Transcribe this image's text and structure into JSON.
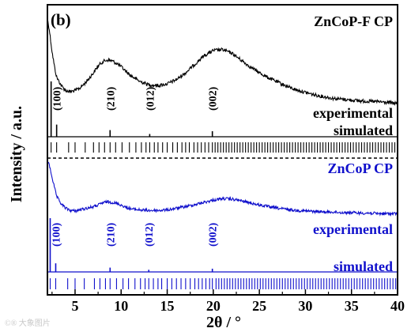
{
  "colors": {
    "panel_top": "#000000",
    "panel_bottom": "#1010cc",
    "axis": "#000000"
  },
  "watermark": "©® 大象图片",
  "chart_data": {
    "type": "line",
    "panel_label": "(b)",
    "xlabel": "2θ / °",
    "ylabel": "Intensity / a.u.",
    "xlim": [
      2,
      40
    ],
    "xticks": [
      5,
      10,
      15,
      20,
      25,
      30,
      35,
      40
    ],
    "xtick_labels": [
      "5",
      "10",
      "15",
      "20",
      "25",
      "30",
      "35",
      "40"
    ],
    "grid": false,
    "panels": [
      {
        "id": "top",
        "title": "ZnCoP-F CP",
        "color": "#000000",
        "series": [
          {
            "name": "experimental",
            "x": [
              2.0,
              2.2,
              2.5,
              2.8,
              3.0,
              3.5,
              4.0,
              4.5,
              5.0,
              5.5,
              6.0,
              6.5,
              7.0,
              7.5,
              8.0,
              8.5,
              9.0,
              9.5,
              10.0,
              10.5,
              11.0,
              12.0,
              13.0,
              14.0,
              15.0,
              16.0,
              17.0,
              18.0,
              19.0,
              20.0,
              21.0,
              22.0,
              23.0,
              24.0,
              25.0,
              26.0,
              27.0,
              28.0,
              29.0,
              30.0,
              31.0,
              32.0,
              33.0,
              34.0,
              35.0,
              36.0,
              37.0,
              38.0,
              39.0,
              40.0
            ],
            "y": [
              1.0,
              0.88,
              0.62,
              0.42,
              0.32,
              0.22,
              0.16,
              0.15,
              0.16,
              0.19,
              0.24,
              0.3,
              0.37,
              0.45,
              0.5,
              0.52,
              0.51,
              0.48,
              0.44,
              0.39,
              0.34,
              0.27,
              0.23,
              0.22,
              0.24,
              0.29,
              0.37,
              0.47,
              0.57,
              0.63,
              0.64,
              0.6,
              0.52,
              0.44,
              0.37,
              0.31,
              0.26,
              0.21,
              0.17,
              0.14,
              0.11,
              0.09,
              0.07,
              0.06,
              0.05,
              0.04,
              0.035,
              0.03,
              0.02,
              0.01
            ]
          },
          {
            "name": "simulated",
            "peaks": [
              {
                "x": 2.4,
                "h": 1.0,
                "label": ""
              },
              {
                "x": 3.0,
                "h": 0.22,
                "label": "(100)"
              },
              {
                "x": 8.8,
                "h": 0.12,
                "label": "(210)"
              },
              {
                "x": 13.1,
                "h": 0.05,
                "label": "(012)"
              },
              {
                "x": 19.9,
                "h": 0.1,
                "label": "(002)"
              }
            ]
          }
        ],
        "ticks": [
          2.4,
          3.0,
          4.3,
          5.0,
          6.1,
          7.0,
          7.6,
          8.2,
          8.8,
          9.4,
          10.1,
          10.9,
          11.6,
          12.2,
          12.7,
          13.1,
          13.6,
          14.0,
          14.5,
          15.0,
          15.6,
          16.1,
          16.6,
          17.0,
          17.4,
          17.9,
          18.3,
          18.7,
          19.1,
          19.5,
          19.9,
          20.2,
          20.5,
          20.8,
          21.1,
          21.4,
          21.7,
          22.0,
          22.3,
          22.6,
          22.9,
          23.2,
          23.5,
          23.8,
          24.1,
          24.4,
          24.7,
          25.0,
          25.3,
          25.6,
          25.9,
          26.2,
          26.5,
          26.8,
          27.1,
          27.4,
          27.7,
          28.0,
          28.3,
          28.6,
          28.9,
          29.2,
          29.5,
          29.8,
          30.1,
          30.4,
          30.7,
          31.0,
          31.3,
          31.6,
          31.9,
          32.2,
          32.5,
          32.8,
          33.1,
          33.4,
          33.7,
          34.0,
          34.3,
          34.6,
          34.9,
          35.2,
          35.5,
          35.8,
          36.1,
          36.4,
          36.7,
          37.0,
          37.3,
          37.6,
          37.9,
          38.2,
          38.5,
          38.8,
          39.1,
          39.4,
          39.7
        ]
      },
      {
        "id": "bottom",
        "title": "ZnCoP CP",
        "color": "#1010cc",
        "series": [
          {
            "name": "experimental",
            "x": [
              2.0,
              2.2,
              2.5,
              2.8,
              3.0,
              3.5,
              4.0,
              4.5,
              5.0,
              5.5,
              6.0,
              6.5,
              7.0,
              7.5,
              8.0,
              8.5,
              9.0,
              9.5,
              10.0,
              10.5,
              11.0,
              12.0,
              13.0,
              14.0,
              15.0,
              16.0,
              17.0,
              18.0,
              19.0,
              20.0,
              21.0,
              22.0,
              23.0,
              24.0,
              25.0,
              26.0,
              27.0,
              28.0,
              29.0,
              30.0,
              31.0,
              32.0,
              33.0,
              34.0,
              35.0,
              36.0,
              37.0,
              38.0,
              39.0,
              40.0
            ],
            "y": [
              1.0,
              0.95,
              0.72,
              0.5,
              0.36,
              0.22,
              0.14,
              0.1,
              0.09,
              0.11,
              0.13,
              0.15,
              0.17,
              0.2,
              0.24,
              0.26,
              0.25,
              0.23,
              0.2,
              0.16,
              0.13,
              0.11,
              0.1,
              0.1,
              0.11,
              0.14,
              0.17,
              0.21,
              0.25,
              0.29,
              0.32,
              0.31,
              0.28,
              0.24,
              0.2,
              0.17,
              0.14,
              0.12,
              0.1,
              0.09,
              0.08,
              0.07,
              0.07,
              0.06,
              0.06,
              0.05,
              0.05,
              0.04,
              0.04,
              0.04
            ]
          },
          {
            "name": "simulated",
            "peaks": [
              {
                "x": 2.3,
                "h": 1.0,
                "label": ""
              },
              {
                "x": 2.9,
                "h": 0.16,
                "label": "(100)"
              },
              {
                "x": 8.8,
                "h": 0.08,
                "label": "(210)"
              },
              {
                "x": 13.0,
                "h": 0.04,
                "label": "(012)"
              },
              {
                "x": 19.9,
                "h": 0.06,
                "label": "(002)"
              }
            ]
          }
        ],
        "ticks": [
          2.3,
          2.9,
          4.2,
          5.0,
          6.0,
          7.1,
          7.7,
          8.3,
          8.8,
          9.5,
          10.2,
          10.8,
          11.5,
          12.1,
          12.6,
          13.0,
          13.5,
          14.0,
          14.4,
          15.0,
          15.5,
          16.0,
          16.5,
          17.0,
          17.5,
          18.0,
          18.4,
          18.8,
          19.2,
          19.6,
          19.9,
          20.3,
          20.6,
          20.9,
          21.2,
          21.5,
          21.8,
          22.1,
          22.4,
          22.7,
          23.0,
          23.3,
          23.6,
          23.9,
          24.2,
          24.5,
          24.8,
          25.1,
          25.4,
          25.7,
          26.0,
          26.3,
          26.6,
          26.9,
          27.2,
          27.5,
          27.8,
          28.1,
          28.4,
          28.7,
          29.0,
          29.3,
          29.6,
          29.9,
          30.2,
          30.5,
          30.8,
          31.1,
          31.4,
          31.7,
          32.0,
          32.3,
          32.6,
          32.9,
          33.2,
          33.5,
          33.8,
          34.1,
          34.4,
          34.7,
          35.0,
          35.3,
          35.6,
          35.9,
          36.2,
          36.5,
          36.8,
          37.1,
          37.4,
          37.7,
          38.0,
          38.3,
          38.6,
          38.9,
          39.2,
          39.5,
          39.8
        ]
      }
    ]
  }
}
